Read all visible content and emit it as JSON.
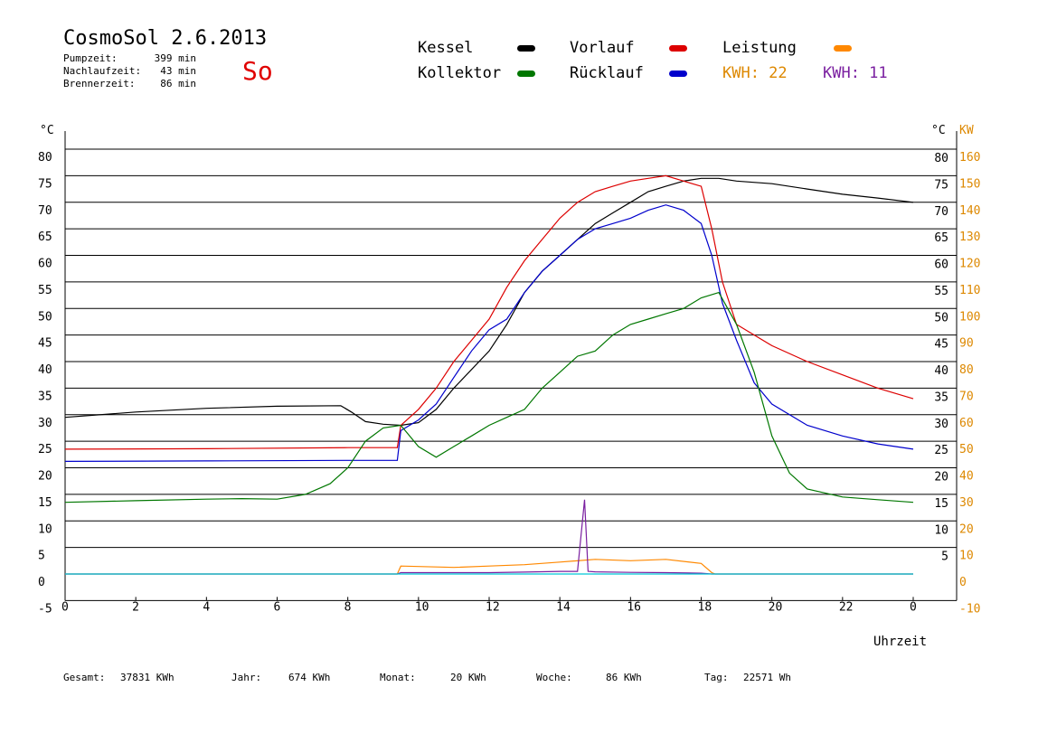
{
  "header": {
    "title": "CosmoSol 2.6.2013",
    "weekday": "So",
    "stats": [
      {
        "label": "Pumpzeit:",
        "value": "399 min"
      },
      {
        "label": "Nachlaufzeit:",
        "value": "43 min"
      },
      {
        "label": "Brennerzeit:",
        "value": "86 min"
      }
    ]
  },
  "legend": {
    "kessel": {
      "label": "Kessel",
      "color": "#000000"
    },
    "vorlauf": {
      "label": "Vorlauf",
      "color": "#dd0000"
    },
    "leistung": {
      "label": "Leistung",
      "color": "#ff8800"
    },
    "kollektor": {
      "label": "Kollektor",
      "color": "#007700"
    },
    "ruecklauf": {
      "label": "Rücklauf",
      "color": "#0000cc"
    },
    "kwh1": {
      "label": "KWH: 22",
      "color": "#dd8800"
    },
    "kwh2": {
      "label": "KWH: 11",
      "color": "#7a1fa0"
    }
  },
  "axes": {
    "left_unit": "°C",
    "right_unit_c": "°C",
    "right_unit_kw": "KW",
    "xlabel": "Uhrzeit"
  },
  "footer": {
    "gesamt": {
      "label": "Gesamt:",
      "value": "37831 KWh"
    },
    "jahr": {
      "label": "Jahr:",
      "value": "674 KWh"
    },
    "monat": {
      "label": "Monat:",
      "value": "20 KWh"
    },
    "woche": {
      "label": "Woche:",
      "value": "86 KWh"
    },
    "tag": {
      "label": "Tag:",
      "value": "22571 Wh"
    }
  },
  "chart_data": {
    "type": "line",
    "xlim": [
      0,
      24
    ],
    "ylim": [
      -5,
      80
    ],
    "y2lim": [
      -10,
      160
    ],
    "x_ticks": [
      0,
      2,
      4,
      6,
      8,
      10,
      12,
      14,
      16,
      18,
      20,
      22,
      "0"
    ],
    "y_ticks": [
      80,
      75,
      70,
      65,
      60,
      55,
      50,
      45,
      40,
      35,
      30,
      25,
      20,
      15,
      10,
      5,
      0,
      -5
    ],
    "y_ticks_right": [
      80,
      75,
      70,
      65,
      60,
      55,
      50,
      45,
      40,
      35,
      30,
      25,
      20,
      15,
      10,
      5
    ],
    "y2_ticks": [
      160,
      150,
      140,
      130,
      120,
      110,
      100,
      90,
      80,
      70,
      60,
      50,
      40,
      30,
      20,
      10,
      0,
      -10
    ],
    "grid": true,
    "series": [
      {
        "name": "Kessel",
        "color": "#000000",
        "x": [
          0,
          2,
          4,
          6,
          7.8,
          8.1,
          8.5,
          9,
          9.5,
          10,
          10.5,
          11,
          12,
          12.5,
          13,
          13.5,
          14,
          14.5,
          15,
          15.5,
          16,
          16.5,
          17,
          17.5,
          18,
          18.5,
          19,
          20,
          21,
          22,
          23,
          24
        ],
        "y": [
          29.5,
          30.5,
          31.2,
          31.6,
          31.7,
          30.5,
          28.7,
          28.2,
          28,
          28.5,
          31,
          35,
          42,
          47,
          53,
          57,
          60,
          63,
          66,
          68,
          70,
          72,
          73,
          74,
          74.5,
          74.5,
          74,
          73.5,
          72.5,
          71.5,
          70.8,
          70
        ]
      },
      {
        "name": "Vorlauf",
        "color": "#dd0000",
        "x": [
          0,
          4,
          8,
          9.4,
          9.5,
          10,
          10.5,
          11,
          11.5,
          12,
          12.5,
          13,
          13.5,
          14,
          14.5,
          15,
          15.5,
          16,
          16.5,
          17,
          17.5,
          18,
          18.3,
          18.6,
          19,
          19.5,
          20,
          21,
          22,
          23,
          24
        ],
        "y": [
          23.5,
          23.6,
          23.8,
          23.8,
          28,
          31,
          35,
          40,
          44,
          48,
          54,
          59,
          63,
          67,
          70,
          72,
          73,
          74,
          74.5,
          75,
          74,
          73,
          65,
          55,
          47,
          45,
          43,
          40,
          37.5,
          35,
          33
        ]
      },
      {
        "name": "Rücklauf",
        "color": "#0000cc",
        "x": [
          0,
          4,
          8,
          9.4,
          9.5,
          10,
          10.5,
          11,
          11.5,
          12,
          12.5,
          13,
          13.5,
          14,
          14.5,
          15,
          15.5,
          16,
          16.5,
          17,
          17.5,
          18,
          18.3,
          18.6,
          19,
          19.5,
          20,
          21,
          22,
          23,
          24
        ],
        "y": [
          21.2,
          21.3,
          21.4,
          21.4,
          27,
          29,
          32,
          37,
          42,
          46,
          48,
          53,
          57,
          60,
          63,
          65,
          66,
          67,
          68.5,
          69.5,
          68.5,
          66,
          60,
          51,
          44,
          36,
          32,
          28,
          26,
          24.5,
          23.5
        ]
      },
      {
        "name": "Kollektor",
        "color": "#007700",
        "x": [
          0,
          2,
          4,
          5,
          6,
          6.8,
          7.5,
          8,
          8.5,
          9,
          9.5,
          10,
          10.5,
          11,
          11.5,
          12,
          12.5,
          13,
          13.5,
          14,
          14.5,
          15,
          15.5,
          16,
          16.5,
          17,
          17.5,
          18,
          18.5,
          19,
          19.5,
          20,
          20.5,
          21,
          22,
          23,
          24
        ],
        "y": [
          13.5,
          13.8,
          14.1,
          14.2,
          14.1,
          15,
          17,
          20,
          25,
          27.5,
          28,
          24,
          22,
          24,
          26,
          28,
          29.5,
          31,
          35,
          38,
          41,
          42,
          45,
          47,
          48,
          49,
          50,
          52,
          53,
          47,
          38,
          26,
          19,
          16,
          14.5,
          14,
          13.5
        ]
      },
      {
        "name": "Leistung",
        "color": "#ff8800",
        "axis": "right",
        "x": [
          0,
          9.4,
          9.5,
          11,
          12,
          13,
          14,
          15,
          16,
          17,
          18,
          18.3,
          18.4,
          24
        ],
        "y": [
          0,
          0,
          3,
          2.5,
          3,
          3.5,
          4.5,
          5.5,
          5,
          5.5,
          4,
          0.5,
          0,
          0
        ]
      },
      {
        "name": "KWH",
        "color": "#7a1fa0",
        "axis": "right",
        "x": [
          0,
          9.4,
          9.5,
          11,
          12,
          13,
          14,
          14.5,
          14.7,
          14.8,
          15,
          16,
          17,
          18,
          18.3,
          24
        ],
        "y": [
          0,
          0,
          0.5,
          0.5,
          0.5,
          0.7,
          1,
          1,
          28,
          1,
          0.8,
          0.6,
          0.5,
          0.3,
          0,
          0
        ]
      },
      {
        "name": "Pumpe",
        "color": "#00c8d8",
        "x": [
          0,
          24
        ],
        "y": [
          0,
          0
        ]
      }
    ]
  }
}
